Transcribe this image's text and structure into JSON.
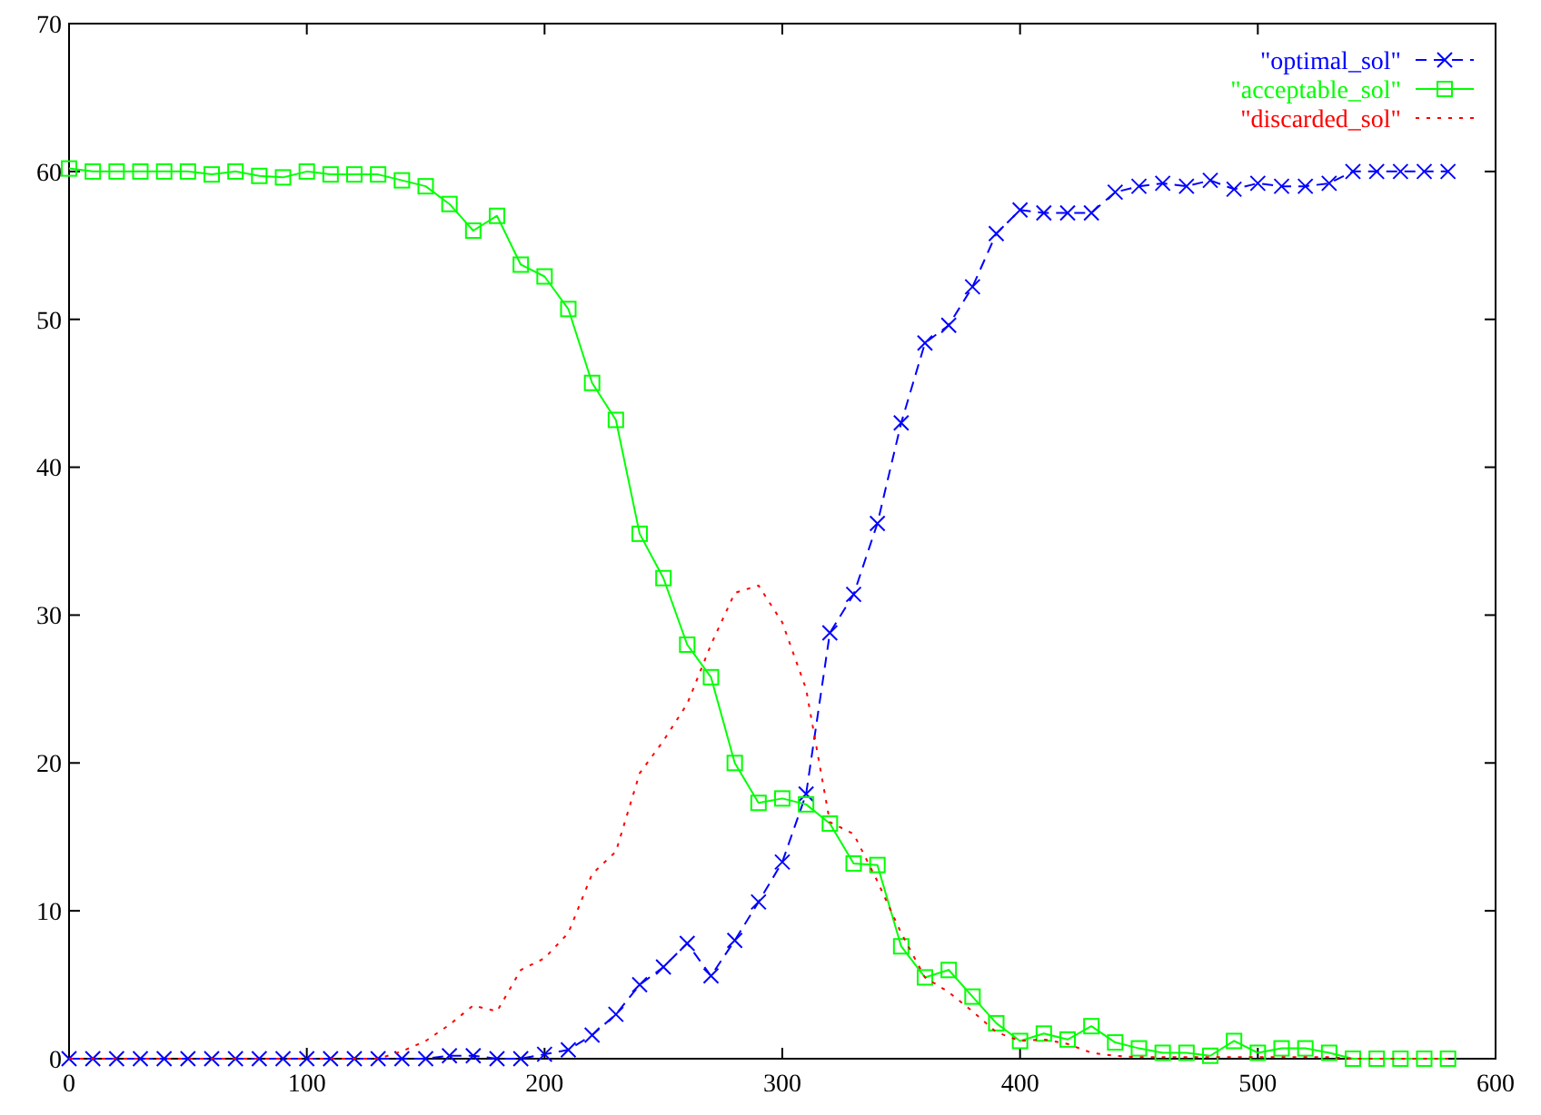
{
  "chart_data": {
    "type": "line",
    "x": [
      0,
      10,
      20,
      30,
      40,
      50,
      60,
      70,
      80,
      90,
      100,
      110,
      120,
      130,
      140,
      150,
      160,
      170,
      180,
      190,
      200,
      210,
      220,
      230,
      240,
      250,
      260,
      270,
      280,
      290,
      300,
      310,
      320,
      330,
      340,
      350,
      360,
      370,
      380,
      390,
      400,
      410,
      420,
      430,
      440,
      450,
      460,
      470,
      480,
      490,
      500,
      510,
      520,
      530,
      540,
      550,
      560,
      570,
      580
    ],
    "series": [
      {
        "name": "\"optimal_sol\"",
        "color": "#0000ff",
        "marker": "cross",
        "line_style": "dashed",
        "values": [
          0,
          0,
          0,
          0,
          0,
          0,
          0,
          0,
          0,
          0,
          0,
          0,
          0,
          0,
          0,
          0,
          0.2,
          0.2,
          0,
          0,
          0.3,
          0.6,
          1.6,
          3.0,
          5.0,
          6.2,
          7.8,
          5.6,
          8.0,
          10.6,
          13.3,
          17.9,
          28.8,
          31.4,
          36.2,
          43.0,
          48.4,
          49.6,
          52.2,
          55.8,
          57.4,
          57.2,
          57.2,
          57.2,
          58.6,
          59.0,
          59.2,
          59.0,
          59.4,
          58.8,
          59.2,
          59.0,
          59.0,
          59.2,
          60,
          60,
          60,
          60,
          60
        ]
      },
      {
        "name": "\"acceptable_sol\"",
        "color": "#00ff00",
        "marker": "square",
        "line_style": "solid",
        "values": [
          60.2,
          60,
          60,
          60,
          60,
          60,
          59.8,
          60,
          59.7,
          59.6,
          60,
          59.8,
          59.8,
          59.8,
          59.4,
          59.0,
          57.8,
          56.0,
          57.0,
          53.7,
          52.9,
          50.7,
          45.7,
          43.2,
          35.5,
          32.5,
          28.0,
          25.8,
          20.0,
          17.3,
          17.6,
          17.2,
          15.9,
          13.2,
          13.1,
          7.6,
          5.5,
          6.0,
          4.2,
          2.4,
          1.2,
          1.7,
          1.3,
          2.2,
          1.1,
          0.7,
          0.4,
          0.4,
          0.2,
          1.2,
          0.4,
          0.7,
          0.7,
          0.4,
          0,
          0,
          0,
          0,
          0
        ]
      },
      {
        "name": "\"discarded_sol\"",
        "color": "#ff0000",
        "marker": "none",
        "line_style": "dotted",
        "values": [
          0,
          0,
          0,
          0,
          0,
          0,
          0,
          0,
          0,
          0,
          0,
          0,
          0,
          0,
          0.5,
          1.2,
          2.3,
          3.6,
          3.2,
          6.0,
          6.8,
          8.5,
          12.5,
          14.0,
          19.3,
          21.5,
          24.0,
          28.0,
          31.5,
          32.0,
          29.5,
          25.0,
          16.0,
          15.2,
          12.0,
          8.5,
          5.5,
          4.5,
          3.2,
          1.8,
          1.2,
          1.3,
          1.0,
          0.4,
          0.2,
          0.1,
          0.1,
          0.1,
          0.1,
          0.1,
          0.1,
          0.1,
          0.1,
          0.1,
          0,
          0,
          0,
          0,
          0
        ]
      }
    ],
    "xlim": [
      0,
      600
    ],
    "xticks": [
      0,
      100,
      200,
      300,
      400,
      500,
      600
    ],
    "ylim": [
      0,
      70
    ],
    "yticks": [
      0,
      10,
      20,
      30,
      40,
      50,
      60,
      70
    ],
    "legend": "top right",
    "grid": false
  }
}
